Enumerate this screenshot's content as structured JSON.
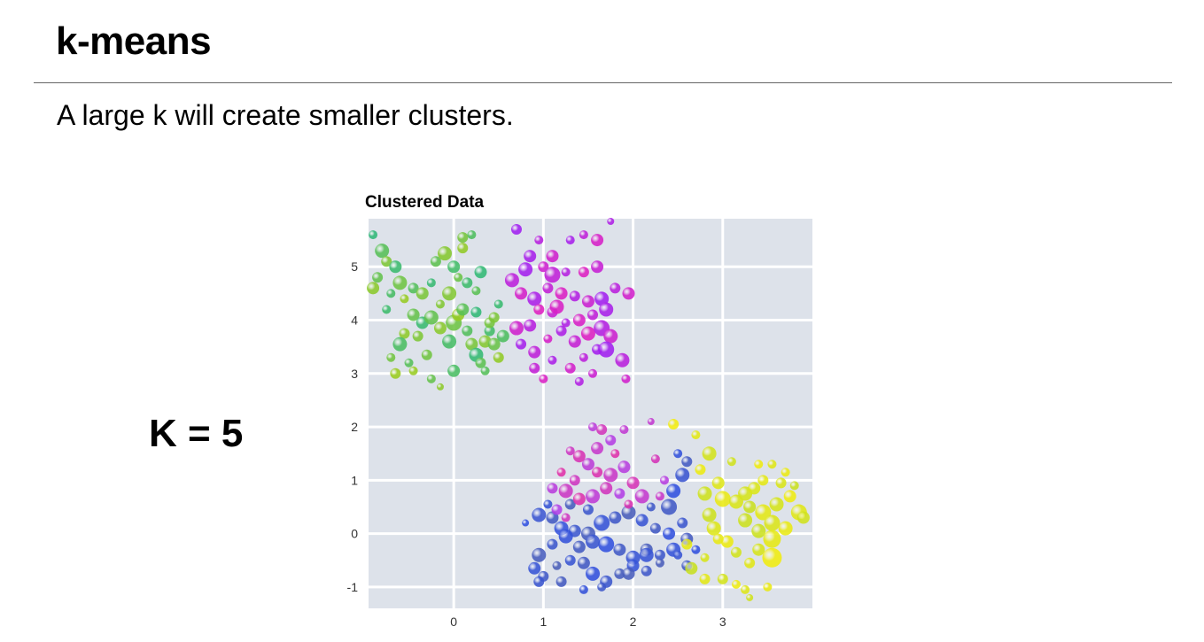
{
  "slide": {
    "title": "k-means",
    "subtitle": "A large k will create smaller clusters.",
    "k_label": "K = 5"
  },
  "chart_data": {
    "type": "scatter",
    "title": "Clustered Data",
    "xlabel": "",
    "ylabel": "",
    "xlim": [
      -0.95,
      4.0
    ],
    "ylim": [
      -1.4,
      5.9
    ],
    "xticks": [
      0,
      1,
      2,
      3
    ],
    "yticks": [
      -1,
      0,
      1,
      2,
      3,
      4,
      5
    ],
    "grid": true,
    "legend": "none",
    "background_color": "#dde2ea",
    "gridline_color": "#ffffff",
    "color_note": "point hue varies continuously; clusters colored green-to-yellowgreen (top-left), purple-to-magenta (top-middle), blue/indigo (bottom-middle), magenta-pink (bottom-middle upper), yellow (bottom-right)",
    "series": [
      {
        "name": "",
        "colors": [
          "#2fb878",
          "#9bcc1f"
        ],
        "points": [
          [
            -0.9,
            5.6,
            5
          ],
          [
            -0.8,
            5.3,
            8
          ],
          [
            -0.75,
            5.1,
            6
          ],
          [
            -0.65,
            5.0,
            7
          ],
          [
            -0.85,
            4.8,
            6
          ],
          [
            -0.9,
            4.6,
            7
          ],
          [
            -0.7,
            4.5,
            5
          ],
          [
            -0.6,
            4.7,
            8
          ],
          [
            -0.55,
            4.4,
            5
          ],
          [
            -0.45,
            4.6,
            6
          ],
          [
            -0.35,
            4.5,
            7
          ],
          [
            -0.25,
            4.7,
            5
          ],
          [
            -0.2,
            5.1,
            6
          ],
          [
            -0.1,
            5.25,
            8
          ],
          [
            0.0,
            5.0,
            7
          ],
          [
            0.05,
            4.8,
            5
          ],
          [
            0.1,
            5.35,
            6
          ],
          [
            0.2,
            5.6,
            5
          ],
          [
            0.1,
            5.55,
            6
          ],
          [
            0.3,
            4.9,
            7
          ],
          [
            0.25,
            4.55,
            5
          ],
          [
            -0.05,
            4.5,
            8
          ],
          [
            0.15,
            4.7,
            6
          ],
          [
            -0.45,
            4.1,
            7
          ],
          [
            -0.55,
            3.75,
            6
          ],
          [
            -0.6,
            3.55,
            8
          ],
          [
            -0.7,
            3.3,
            5
          ],
          [
            -0.65,
            3.0,
            6
          ],
          [
            -0.5,
            3.2,
            5
          ],
          [
            -0.4,
            3.7,
            6
          ],
          [
            -0.35,
            3.95,
            7
          ],
          [
            -0.25,
            4.05,
            8
          ],
          [
            -0.15,
            3.85,
            7
          ],
          [
            -0.05,
            3.6,
            8
          ],
          [
            0.0,
            3.95,
            9
          ],
          [
            0.05,
            4.1,
            7
          ],
          [
            0.15,
            3.8,
            6
          ],
          [
            0.2,
            3.55,
            7
          ],
          [
            0.25,
            3.35,
            8
          ],
          [
            0.3,
            3.2,
            6
          ],
          [
            0.35,
            3.6,
            7
          ],
          [
            0.4,
            3.8,
            6
          ],
          [
            0.45,
            3.55,
            7
          ],
          [
            0.5,
            3.3,
            6
          ],
          [
            0.55,
            3.7,
            7
          ],
          [
            0.4,
            3.95,
            6
          ],
          [
            0.25,
            4.15,
            6
          ],
          [
            0.1,
            4.2,
            7
          ],
          [
            -0.15,
            4.3,
            5
          ],
          [
            -0.75,
            4.2,
            5
          ],
          [
            -0.25,
            2.9,
            5
          ],
          [
            -0.15,
            2.75,
            4
          ],
          [
            0.0,
            3.05,
            7
          ],
          [
            -0.3,
            3.35,
            6
          ],
          [
            -0.45,
            3.05,
            5
          ],
          [
            0.35,
            3.05,
            5
          ],
          [
            0.45,
            4.05,
            6
          ],
          [
            0.5,
            4.3,
            5
          ]
        ]
      },
      {
        "name": "",
        "colors": [
          "#a020f0",
          "#e020c0"
        ],
        "points": [
          [
            0.7,
            5.7,
            6
          ],
          [
            0.95,
            5.5,
            5
          ],
          [
            1.1,
            5.2,
            7
          ],
          [
            1.3,
            5.5,
            5
          ],
          [
            1.45,
            5.6,
            5
          ],
          [
            1.6,
            5.5,
            7
          ],
          [
            1.75,
            5.85,
            4
          ],
          [
            1.6,
            5.0,
            7
          ],
          [
            1.45,
            4.9,
            6
          ],
          [
            1.25,
            4.9,
            5
          ],
          [
            1.0,
            5.0,
            6
          ],
          [
            0.8,
            4.95,
            8
          ],
          [
            0.65,
            4.75,
            8
          ],
          [
            0.75,
            4.5,
            7
          ],
          [
            0.9,
            4.4,
            8
          ],
          [
            1.05,
            4.6,
            6
          ],
          [
            1.2,
            4.5,
            7
          ],
          [
            1.35,
            4.45,
            6
          ],
          [
            1.5,
            4.35,
            7
          ],
          [
            1.65,
            4.4,
            8
          ],
          [
            1.8,
            4.6,
            6
          ],
          [
            1.95,
            4.5,
            7
          ],
          [
            1.7,
            4.2,
            8
          ],
          [
            1.55,
            4.1,
            6
          ],
          [
            1.4,
            4.0,
            7
          ],
          [
            1.25,
            3.95,
            5
          ],
          [
            1.1,
            4.15,
            6
          ],
          [
            0.95,
            4.2,
            6
          ],
          [
            0.85,
            3.9,
            7
          ],
          [
            0.7,
            3.85,
            8
          ],
          [
            0.75,
            3.55,
            6
          ],
          [
            0.9,
            3.4,
            7
          ],
          [
            1.05,
            3.65,
            5
          ],
          [
            1.2,
            3.8,
            6
          ],
          [
            1.35,
            3.6,
            7
          ],
          [
            1.5,
            3.75,
            8
          ],
          [
            1.65,
            3.85,
            9
          ],
          [
            1.75,
            3.7,
            8
          ],
          [
            1.6,
            3.45,
            6
          ],
          [
            1.45,
            3.3,
            5
          ],
          [
            1.3,
            3.1,
            6
          ],
          [
            1.1,
            3.25,
            5
          ],
          [
            0.9,
            3.1,
            6
          ],
          [
            1.0,
            2.9,
            5
          ],
          [
            1.4,
            2.85,
            5
          ],
          [
            1.55,
            3.0,
            5
          ],
          [
            1.7,
            3.45,
            9
          ],
          [
            1.88,
            3.25,
            8
          ],
          [
            1.92,
            2.9,
            5
          ],
          [
            0.85,
            5.2,
            7
          ],
          [
            1.1,
            4.85,
            9
          ],
          [
            1.15,
            4.25,
            8
          ]
        ]
      },
      {
        "name": "",
        "colors": [
          "#3050e0",
          "#4a5eb8"
        ],
        "points": [
          [
            0.8,
            0.2,
            4
          ],
          [
            0.95,
            0.35,
            8
          ],
          [
            1.1,
            0.3,
            7
          ],
          [
            1.2,
            0.1,
            8
          ],
          [
            1.35,
            0.05,
            7
          ],
          [
            1.5,
            0.0,
            8
          ],
          [
            1.65,
            0.2,
            9
          ],
          [
            1.8,
            0.3,
            7
          ],
          [
            1.95,
            0.4,
            8
          ],
          [
            2.1,
            0.25,
            7
          ],
          [
            2.25,
            0.1,
            6
          ],
          [
            2.4,
            0.0,
            7
          ],
          [
            2.55,
            0.2,
            6
          ],
          [
            2.6,
            -0.1,
            7
          ],
          [
            2.45,
            -0.3,
            8
          ],
          [
            2.3,
            -0.4,
            6
          ],
          [
            2.15,
            -0.3,
            7
          ],
          [
            2.0,
            -0.45,
            8
          ],
          [
            1.85,
            -0.3,
            7
          ],
          [
            1.7,
            -0.2,
            9
          ],
          [
            1.55,
            -0.15,
            8
          ],
          [
            1.4,
            -0.25,
            7
          ],
          [
            1.25,
            -0.05,
            8
          ],
          [
            1.1,
            -0.2,
            6
          ],
          [
            0.95,
            -0.4,
            8
          ],
          [
            0.9,
            -0.65,
            7
          ],
          [
            1.0,
            -0.8,
            6
          ],
          [
            1.15,
            -0.6,
            5
          ],
          [
            1.3,
            -0.5,
            6
          ],
          [
            1.45,
            -0.55,
            7
          ],
          [
            1.55,
            -0.75,
            8
          ],
          [
            1.7,
            -0.9,
            7
          ],
          [
            1.85,
            -0.75,
            6
          ],
          [
            2.0,
            -0.6,
            7
          ],
          [
            2.15,
            -0.7,
            6
          ],
          [
            2.3,
            -0.55,
            5
          ],
          [
            2.5,
            -0.4,
            5
          ],
          [
            2.6,
            -0.6,
            6
          ],
          [
            2.7,
            -0.3,
            5
          ],
          [
            0.95,
            -0.9,
            6
          ],
          [
            1.2,
            -0.9,
            6
          ],
          [
            1.45,
            -1.05,
            5
          ],
          [
            1.65,
            -1.0,
            5
          ],
          [
            1.95,
            -0.75,
            7
          ],
          [
            2.15,
            -0.4,
            8
          ],
          [
            2.4,
            0.5,
            9
          ],
          [
            2.45,
            0.8,
            8
          ],
          [
            2.55,
            1.1,
            8
          ],
          [
            2.6,
            1.35,
            6
          ],
          [
            2.5,
            1.5,
            5
          ],
          [
            1.5,
            0.45,
            6
          ],
          [
            1.3,
            0.55,
            6
          ],
          [
            1.05,
            0.55,
            5
          ],
          [
            2.2,
            0.5,
            5
          ]
        ]
      },
      {
        "name": "",
        "colors": [
          "#e030a8",
          "#b040e8"
        ],
        "points": [
          [
            1.2,
            1.15,
            5
          ],
          [
            1.35,
            1.0,
            6
          ],
          [
            1.5,
            1.3,
            7
          ],
          [
            1.6,
            1.15,
            6
          ],
          [
            1.75,
            1.1,
            8
          ],
          [
            1.9,
            1.25,
            7
          ],
          [
            2.0,
            0.95,
            7
          ],
          [
            2.1,
            0.7,
            8
          ],
          [
            1.85,
            0.75,
            6
          ],
          [
            1.7,
            0.85,
            7
          ],
          [
            1.55,
            0.7,
            8
          ],
          [
            1.4,
            0.65,
            7
          ],
          [
            1.25,
            0.8,
            8
          ],
          [
            1.1,
            0.85,
            6
          ],
          [
            1.4,
            1.45,
            7
          ],
          [
            1.6,
            1.6,
            7
          ],
          [
            1.75,
            1.75,
            6
          ],
          [
            1.65,
            1.95,
            6
          ],
          [
            1.9,
            1.95,
            5
          ],
          [
            1.8,
            1.5,
            5
          ],
          [
            1.3,
            1.55,
            5
          ],
          [
            1.55,
            2.0,
            5
          ],
          [
            1.95,
            0.55,
            5
          ],
          [
            2.3,
            0.7,
            5
          ],
          [
            2.35,
            1.0,
            5
          ],
          [
            2.25,
            1.4,
            5
          ],
          [
            2.2,
            2.1,
            4
          ],
          [
            1.15,
            0.45,
            6
          ],
          [
            1.25,
            0.3,
            5
          ]
        ]
      },
      {
        "name": "",
        "colors": [
          "#f2ec10",
          "#c8e020"
        ],
        "points": [
          [
            2.45,
            2.05,
            6
          ],
          [
            2.7,
            1.85,
            5
          ],
          [
            2.85,
            1.5,
            8
          ],
          [
            2.75,
            1.2,
            6
          ],
          [
            2.95,
            0.95,
            7
          ],
          [
            2.8,
            0.75,
            8
          ],
          [
            3.0,
            0.65,
            9
          ],
          [
            3.15,
            0.6,
            8
          ],
          [
            3.3,
            0.5,
            7
          ],
          [
            3.45,
            0.4,
            9
          ],
          [
            3.6,
            0.55,
            8
          ],
          [
            3.75,
            0.7,
            7
          ],
          [
            3.85,
            0.4,
            9
          ],
          [
            3.9,
            0.3,
            7
          ],
          [
            3.7,
            0.1,
            8
          ],
          [
            3.55,
            0.2,
            9
          ],
          [
            3.4,
            0.05,
            8
          ],
          [
            3.55,
            -0.1,
            10
          ],
          [
            3.4,
            -0.3,
            7
          ],
          [
            3.55,
            -0.45,
            11
          ],
          [
            3.3,
            -0.55,
            6
          ],
          [
            3.15,
            -0.35,
            6
          ],
          [
            3.05,
            -0.15,
            7
          ],
          [
            2.9,
            0.1,
            8
          ],
          [
            2.85,
            0.35,
            8
          ],
          [
            2.95,
            -0.1,
            6
          ],
          [
            2.8,
            -0.45,
            5
          ],
          [
            2.65,
            -0.65,
            7
          ],
          [
            2.8,
            -0.85,
            6
          ],
          [
            3.0,
            -0.85,
            6
          ],
          [
            3.15,
            -0.95,
            5
          ],
          [
            3.25,
            -1.05,
            5
          ],
          [
            3.3,
            -1.2,
            4
          ],
          [
            3.5,
            -1.0,
            5
          ],
          [
            3.65,
            0.95,
            6
          ],
          [
            3.8,
            0.9,
            5
          ],
          [
            3.45,
            1.0,
            6
          ],
          [
            3.25,
            0.75,
            8
          ],
          [
            3.4,
            1.3,
            5
          ],
          [
            3.55,
            1.3,
            5
          ],
          [
            3.1,
            1.35,
            5
          ],
          [
            3.7,
            1.15,
            5
          ],
          [
            3.35,
            0.85,
            7
          ],
          [
            3.25,
            0.25,
            8
          ],
          [
            2.6,
            -0.2,
            6
          ]
        ]
      }
    ]
  }
}
